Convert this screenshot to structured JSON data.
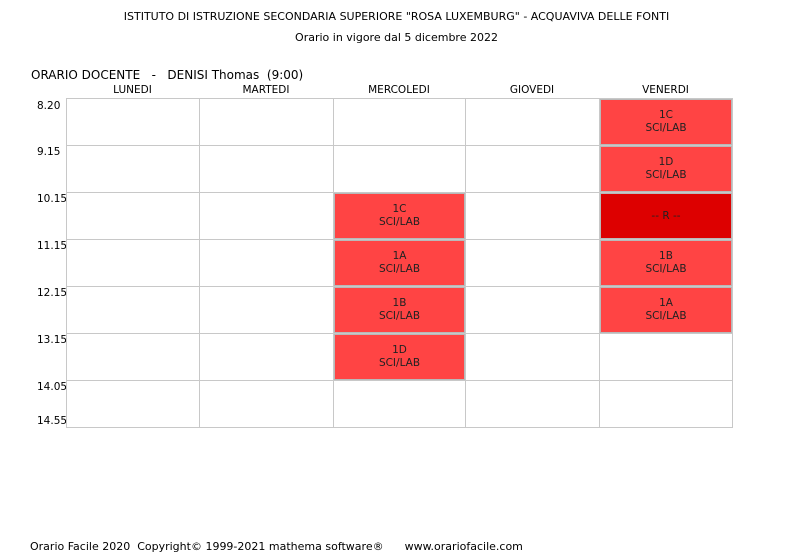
{
  "header": {
    "title": "ISTITUTO DI ISTRUZIONE SECONDARIA SUPERIORE \"ROSA LUXEMBURG\" - ACQUAVIVA DELLE FONTI",
    "subtitle": "Orario in vigore dal 5 dicembre 2022"
  },
  "teacher_label": "ORARIO DOCENTE   -   DENISI Thomas  (9:00)",
  "days": [
    "LUNEDI",
    "MARTEDI",
    "MERCOLEDI",
    "GIOVEDI",
    "VENERDI"
  ],
  "times": [
    "8.20",
    "9.15",
    "10.15",
    "11.15",
    "12.15",
    "13.15",
    "14.05",
    "14.55"
  ],
  "lessons": [
    {
      "day": 2,
      "slot": 2,
      "class_name": "1C",
      "subject": "SCI/LAB",
      "color": "#ff4444"
    },
    {
      "day": 2,
      "slot": 3,
      "class_name": "1A",
      "subject": "SCI/LAB",
      "color": "#ff4444"
    },
    {
      "day": 2,
      "slot": 4,
      "class_name": "1B",
      "subject": "SCI/LAB",
      "color": "#ff4444"
    },
    {
      "day": 2,
      "slot": 5,
      "class_name": "1D",
      "subject": "SCI/LAB",
      "color": "#ff4444"
    },
    {
      "day": 4,
      "slot": 0,
      "class_name": "1C",
      "subject": "SCI/LAB",
      "color": "#ff4444"
    },
    {
      "day": 4,
      "slot": 1,
      "class_name": "1D",
      "subject": "SCI/LAB",
      "color": "#ff4444"
    },
    {
      "day": 4,
      "slot": 2,
      "class_name": "-- R --",
      "subject": "",
      "color": "#dd0000"
    },
    {
      "day": 4,
      "slot": 3,
      "class_name": "1B",
      "subject": "SCI/LAB",
      "color": "#ff4444"
    },
    {
      "day": 4,
      "slot": 4,
      "class_name": "1A",
      "subject": "SCI/LAB",
      "color": "#ff4444"
    }
  ],
  "footer": "Orario Facile 2020  Copyright© 1999-2021 mathema software®      www.orariofacile.com"
}
